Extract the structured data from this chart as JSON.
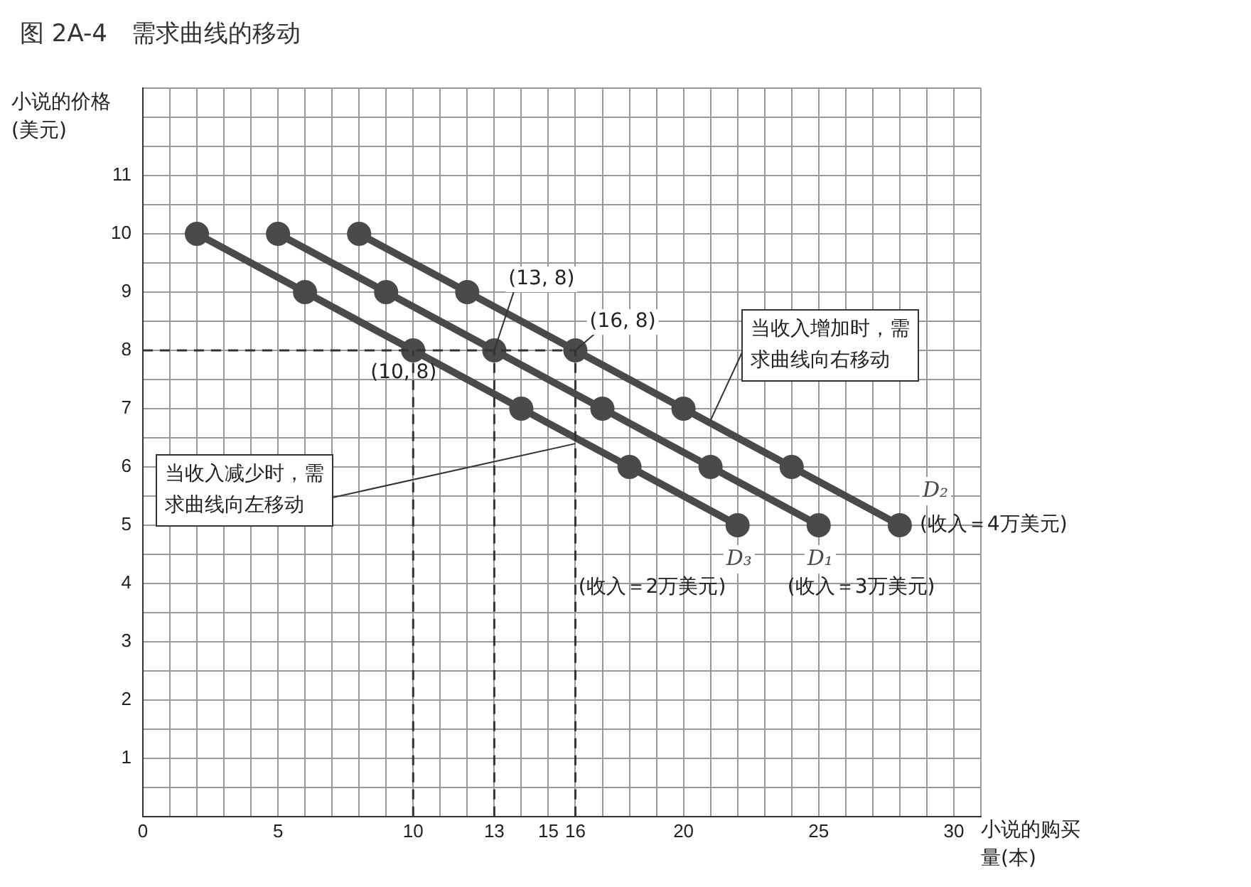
{
  "chart_data": {
    "type": "line",
    "title": "图 2A-4　需求曲线的移动",
    "xlabel": "小说的购买量(本)",
    "ylabel": "小说的价格(美元)",
    "series": [
      {
        "name": "D₃",
        "color": "#4a4a4a",
        "x": [
          2,
          6,
          10,
          14,
          18,
          22
        ],
        "values": [
          10,
          9,
          8,
          7,
          6,
          5
        ]
      },
      {
        "name": "D₁",
        "color": "#4a4a4a",
        "x": [
          5,
          9,
          13,
          17,
          21,
          25
        ],
        "values": [
          10,
          9,
          8,
          7,
          6,
          5
        ]
      },
      {
        "name": "D₂",
        "color": "#4a4a4a",
        "x": [
          8,
          12,
          16,
          20,
          24,
          28
        ],
        "values": [
          10,
          9,
          8,
          7,
          6,
          5
        ]
      }
    ],
    "xlim": [
      0,
      31
    ],
    "xticks": [
      0,
      {
        "value": 1,
        "label": null
      },
      {
        "value": 2,
        "label": null
      },
      {
        "value": 3,
        "label": null
      },
      {
        "value": 4,
        "label": null
      },
      5,
      {
        "value": 6,
        "label": null
      },
      {
        "value": 7,
        "label": null
      },
      {
        "value": 8,
        "label": null
      },
      {
        "value": 9,
        "label": null
      },
      10,
      {
        "value": 11,
        "label": null
      },
      {
        "value": 12,
        "label": null
      },
      13,
      {
        "value": 14,
        "label": null
      },
      15,
      16,
      {
        "value": 17,
        "label": null
      },
      {
        "value": 18,
        "label": null
      },
      {
        "value": 19,
        "label": null
      },
      20,
      {
        "value": 21,
        "label": null
      },
      {
        "value": 22,
        "label": null
      },
      {
        "value": 23,
        "label": null
      },
      {
        "value": 24,
        "label": null
      },
      25,
      {
        "value": 26,
        "label": null
      },
      {
        "value": 27,
        "label": null
      },
      {
        "value": 28,
        "label": null
      },
      {
        "value": 29,
        "label": null
      },
      30,
      {
        "value": 31,
        "label": null
      }
    ],
    "ylim": [
      0,
      12.5
    ],
    "yticks": [
      {
        "value": 0.5,
        "label": null
      },
      1,
      {
        "value": 1.5,
        "label": null
      },
      2,
      {
        "value": 2.5,
        "label": null
      },
      3,
      {
        "value": 3.5,
        "label": null
      },
      4,
      {
        "value": 4.5,
        "label": null
      },
      5,
      {
        "value": 5.5,
        "label": null
      },
      6,
      {
        "value": 6.5,
        "label": null
      },
      7,
      {
        "value": 7.5,
        "label": null
      },
      8,
      {
        "value": 8.5,
        "label": null
      },
      9,
      {
        "value": 9.5,
        "label": null
      },
      10,
      {
        "value": 10.5,
        "label": null
      },
      11,
      {
        "value": 11.5,
        "label": null
      },
      {
        "value": 12,
        "label": null
      },
      {
        "value": 12.5,
        "label": null
      }
    ],
    "grid": true,
    "legend": false,
    "marker": "circle",
    "line_style": "solid",
    "ref_lines": [
      {
        "axis": "y",
        "value": 8,
        "line_style": "dashed"
      },
      {
        "axis": "x",
        "value": 10,
        "line_style": "dashed"
      },
      {
        "axis": "x",
        "value": 13,
        "line_style": "dashed"
      },
      {
        "axis": "x",
        "value": 16,
        "line_style": "dashed"
      }
    ],
    "annotations": [
      {
        "text": "(10, 8)",
        "x": 10,
        "y": 8
      },
      {
        "text": "(13, 8)",
        "x": 13,
        "y": 8
      },
      {
        "text": "(16, 8)",
        "x": 16,
        "y": 8
      },
      {
        "text": "当收入增加时，需求曲线向右移动",
        "x": 21,
        "y": 6.8
      },
      {
        "text": "当收入减少时，需求曲线向左移动",
        "x": 16,
        "y": 6.4
      },
      {
        "text": "(收入＝2万美元)",
        "x": 22,
        "y": 5
      },
      {
        "text": "(收入＝3万美元)",
        "x": 25,
        "y": 5
      },
      {
        "text": "(收入＝4万美元)",
        "x": 28,
        "y": 5
      }
    ]
  }
}
